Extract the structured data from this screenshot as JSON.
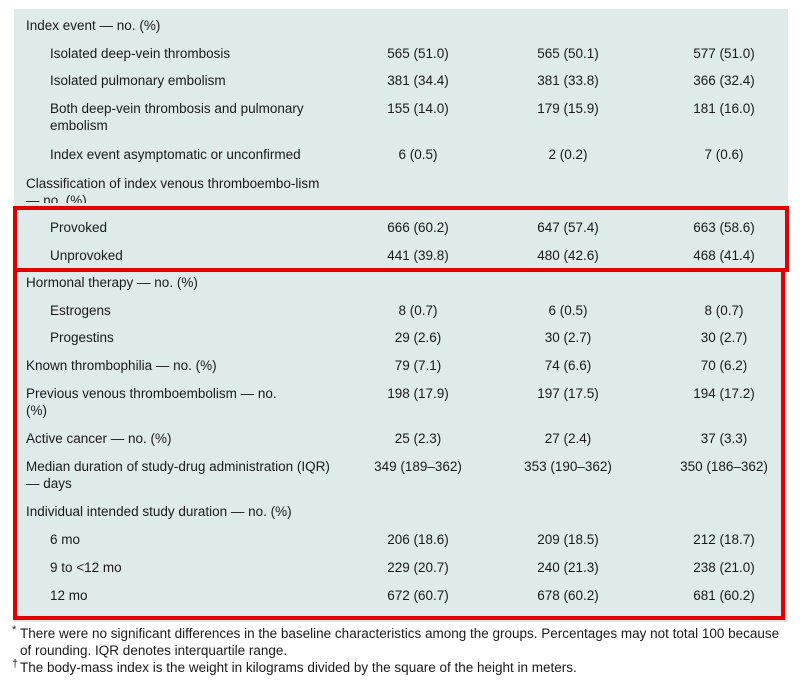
{
  "colors": {
    "panel": "#dfeaea",
    "highlight_border": "#e00000"
  },
  "rows": [
    {
      "label": "Index event — no. (%)",
      "v": [
        "",
        "",
        ""
      ]
    },
    {
      "label": "Isolated deep-vein thrombosis",
      "v": [
        "565 (51.0)",
        "565 (50.1)",
        "577 (51.0)"
      ]
    },
    {
      "label": "Isolated pulmonary embolism",
      "v": [
        "381 (34.4)",
        "381 (33.8)",
        "366 (32.4)"
      ]
    },
    {
      "label": "Both deep-vein thrombosis and pulmonary embolism",
      "v": [
        "155 (14.0)",
        "179 (15.9)",
        "181 (16.0)"
      ]
    },
    {
      "label": "Index event asymptomatic or unconfirmed",
      "v": [
        "6 (0.5)",
        "2 (0.2)",
        "7 (0.6)"
      ]
    },
    {
      "label": "Classification of index venous thromboembo-lism — no. (%)",
      "v": [
        "",
        "",
        ""
      ]
    },
    {
      "label": "Provoked",
      "v": [
        "666 (60.2)",
        "647 (57.4)",
        "663 (58.6)"
      ]
    },
    {
      "label": "Unprovoked",
      "v": [
        "441 (39.8)",
        "480 (42.6)",
        "468 (41.4)"
      ]
    },
    {
      "label": "Hormonal therapy — no. (%)",
      "v": [
        "",
        "",
        ""
      ]
    },
    {
      "label": "Estrogens",
      "v": [
        "8 (0.7)",
        "6 (0.5)",
        "8 (0.7)"
      ]
    },
    {
      "label": "Progestins",
      "v": [
        "29 (2.6)",
        "30 (2.7)",
        "30 (2.7)"
      ]
    },
    {
      "label": "Known thrombophilia — no. (%)",
      "v": [
        "79 (7.1)",
        "74 (6.6)",
        "70 (6.2)"
      ]
    },
    {
      "label": "Previous venous thromboembolism — no. (%)",
      "v": [
        "198 (17.9)",
        "197 (17.5)",
        "194 (17.2)"
      ]
    },
    {
      "label": "Active cancer — no. (%)",
      "v": [
        "25 (2.3)",
        "27 (2.4)",
        "37 (3.3)"
      ]
    },
    {
      "label": "Median duration of study-drug administration (IQR) — days",
      "v": [
        "349 (189–362)",
        "353 (190–362)",
        "350 (186–362)"
      ]
    },
    {
      "label": "Individual intended study duration — no. (%)",
      "v": [
        "",
        "",
        ""
      ]
    },
    {
      "label": "6 mo",
      "v": [
        "206 (18.6)",
        "209 (18.5)",
        "212 (18.7)"
      ]
    },
    {
      "label": "9 to <12 mo",
      "v": [
        "229 (20.7)",
        "240 (21.3)",
        "238 (21.0)"
      ]
    },
    {
      "label": "12 mo",
      "v": [
        "672 (60.7)",
        "678 (60.2)",
        "681 (60.2)"
      ]
    }
  ],
  "footnotes": [
    {
      "mark": "*",
      "text": "There were no significant differences in the baseline characteristics among the groups. Percentages may not total 100 because of rounding. IQR denotes interquartile range."
    },
    {
      "mark": "†",
      "text": "The body-mass index is the weight in kilograms divided by the square of the height in meters."
    }
  ]
}
